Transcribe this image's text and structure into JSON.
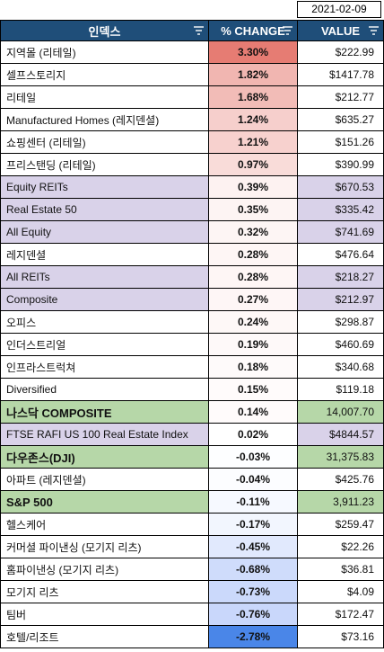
{
  "date": "2021-02-09",
  "headers": {
    "index": "인덱스",
    "change": "% CHANGE",
    "value": "VALUE"
  },
  "rows": [
    {
      "name": "지역몰 (리테일)",
      "change": "3.30%",
      "value": "$222.99",
      "group": "plain",
      "bg": "#e67c73"
    },
    {
      "name": "셀프스토리지",
      "change": "1.82%",
      "value": "$1417.78",
      "group": "plain",
      "bg": "#f1b6b1"
    },
    {
      "name": "리테일",
      "change": "1.68%",
      "value": "$212.77",
      "group": "plain",
      "bg": "#f2bcb7"
    },
    {
      "name": "Manufactured Homes (레지덴셜)",
      "change": "1.24%",
      "value": "$635.27",
      "group": "plain",
      "bg": "#f6cfcc"
    },
    {
      "name": "쇼핑센터 (리테일)",
      "change": "1.21%",
      "value": "$151.26",
      "group": "plain",
      "bg": "#f7d1ce"
    },
    {
      "name": "프리스탠딩 (리테일)",
      "change": "0.97%",
      "value": "$390.99",
      "group": "plain",
      "bg": "#f9dcd9"
    },
    {
      "name": "Equity REITs",
      "change": "0.39%",
      "value": "$670.53",
      "group": "purple",
      "bg": "#fdf2f1"
    },
    {
      "name": "Real Estate 50",
      "change": "0.35%",
      "value": "$335.42",
      "group": "purple",
      "bg": "#fdf4f3"
    },
    {
      "name": "All Equity",
      "change": "0.32%",
      "value": "$741.69",
      "group": "purple",
      "bg": "#fdf5f4"
    },
    {
      "name": "레지덴셜",
      "change": "0.28%",
      "value": "$476.64",
      "group": "plain",
      "bg": "#fef6f5"
    },
    {
      "name": "All REITs",
      "change": "0.28%",
      "value": "$218.27",
      "group": "purple",
      "bg": "#fef6f5"
    },
    {
      "name": "Composite",
      "change": "0.27%",
      "value": "$212.97",
      "group": "purple",
      "bg": "#fef6f6"
    },
    {
      "name": "오피스",
      "change": "0.24%",
      "value": "$298.87",
      "group": "plain",
      "bg": "#fef8f7"
    },
    {
      "name": "인더스트리얼",
      "change": "0.19%",
      "value": "$460.69",
      "group": "plain",
      "bg": "#fef9f9"
    },
    {
      "name": "인프라스트럭쳐",
      "change": "0.18%",
      "value": "$340.68",
      "group": "plain",
      "bg": "#fefafa"
    },
    {
      "name": "Diversified",
      "change": "0.15%",
      "value": "$119.18",
      "group": "plain",
      "bg": "#fffbfb"
    },
    {
      "name": "나스닥 COMPOSITE",
      "change": "0.14%",
      "value": "14,007.70",
      "group": "green",
      "bg": "#fffbfb"
    },
    {
      "name": "FTSE RAFI US 100 Real Estate Index",
      "change": "0.02%",
      "value": "$4844.57",
      "group": "purple",
      "bg": "#ffffff"
    },
    {
      "name": "다우존스(DJI)",
      "change": "-0.03%",
      "value": "31,375.83",
      "group": "green",
      "bg": "#fdfeff"
    },
    {
      "name": "아파트 (레지덴셜)",
      "change": "-0.04%",
      "value": "$425.76",
      "group": "plain",
      "bg": "#fcfdff"
    },
    {
      "name": "S&P 500",
      "change": "-0.11%",
      "value": "3,911.23",
      "group": "green",
      "bg": "#f6f9ff"
    },
    {
      "name": "헬스케어",
      "change": "-0.17%",
      "value": "$259.47",
      "group": "plain",
      "bg": "#f2f6fe"
    },
    {
      "name": "커머셜 파이낸싱 (모기지 리츠)",
      "change": "-0.45%",
      "value": "$22.26",
      "group": "plain",
      "bg": "#e1e9fd"
    },
    {
      "name": "홈파이낸싱 (모기지 리츠)",
      "change": "-0.68%",
      "value": "$36.81",
      "group": "plain",
      "bg": "#cfdcfb"
    },
    {
      "name": "모기지 리츠",
      "change": "-0.73%",
      "value": "$4.09",
      "group": "plain",
      "bg": "#cbd9fb"
    },
    {
      "name": "팀버",
      "change": "-0.76%",
      "value": "$172.47",
      "group": "plain",
      "bg": "#c9d7fb"
    },
    {
      "name": "호텔/리조트",
      "change": "-2.78%",
      "value": "$73.16",
      "group": "plain",
      "bg": "#4a86e8"
    }
  ]
}
